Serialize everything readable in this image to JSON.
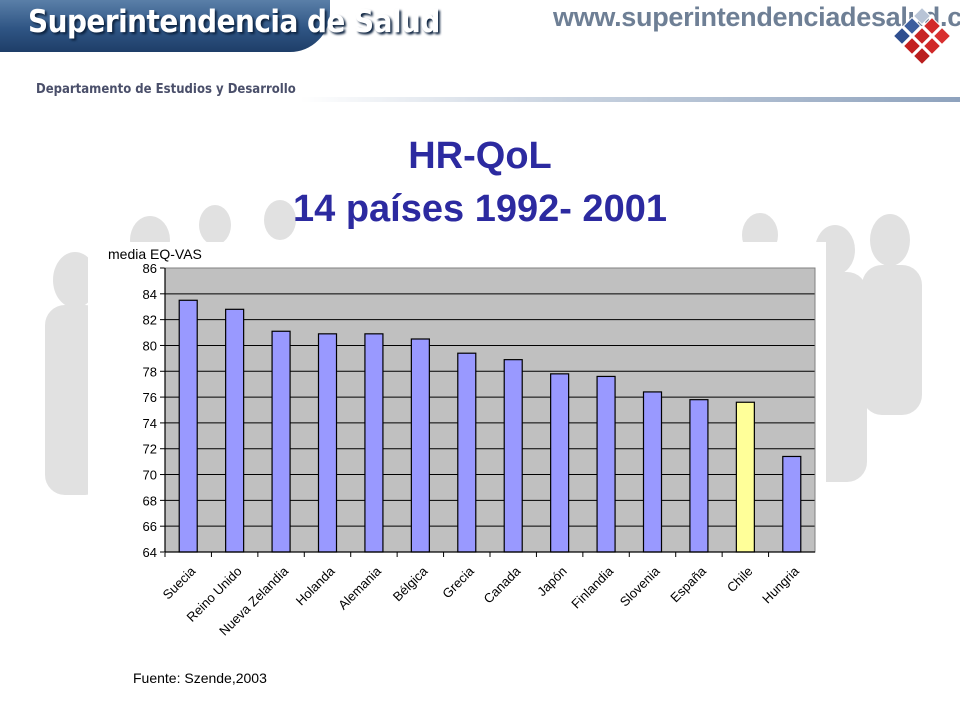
{
  "header": {
    "banner_title": "Superintendencia de Salud",
    "website": "www.superintendenciadesalud.cl",
    "department": "Departamento de Estudios y Desarrollo"
  },
  "title": {
    "line1": "HR-QoL",
    "line2": "14 países 1992- 2001"
  },
  "source_note": "Fuente: Szende,2003",
  "colors": {
    "title": "#2c2aa0",
    "bar_default": "#9999ff",
    "bar_highlight": "#ffff99",
    "plot_background": "#c0c0c0",
    "banner": "#2f5584"
  },
  "icons": [
    "cubes-logo-icon"
  ],
  "chart_data": {
    "type": "bar",
    "ylabel": "media EQ-VAS",
    "ylim": [
      64,
      86
    ],
    "yticks": [
      64,
      66,
      68,
      70,
      72,
      74,
      76,
      78,
      80,
      82,
      84,
      86
    ],
    "grid": true,
    "categories": [
      "Suecia",
      "Reino Unido",
      "Nueva Zelandia",
      "Holanda",
      "Alemania",
      "Bélgica",
      "Grecia",
      "Canada",
      "Japón",
      "Finlandia",
      "Slovenia",
      "España",
      "Chile",
      "Hungria"
    ],
    "values": [
      83.5,
      82.8,
      81.1,
      80.9,
      80.9,
      80.5,
      79.4,
      78.9,
      77.8,
      77.6,
      76.4,
      75.8,
      75.6,
      71.4
    ],
    "highlight": "Chile"
  }
}
